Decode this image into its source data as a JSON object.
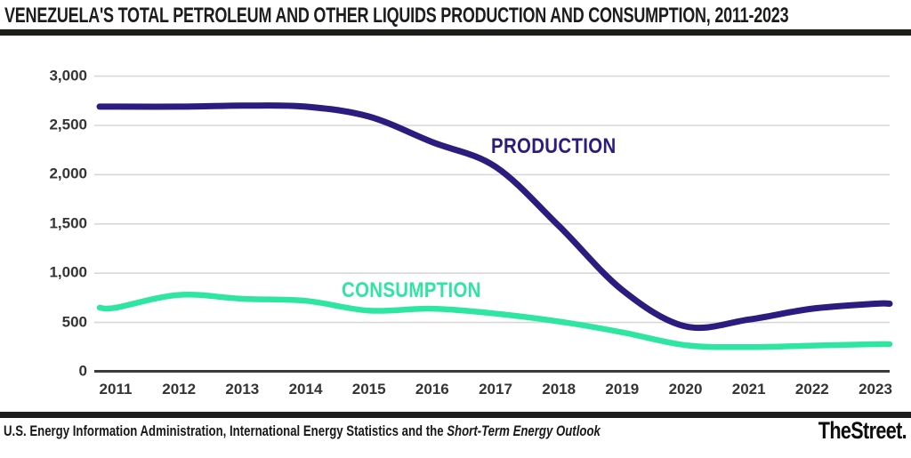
{
  "chart_data": {
    "type": "line",
    "title": "VENEZUELA'S TOTAL PETROLEUM AND OTHER LIQUIDS PRODUCTION AND CONSUMPTION, 2011-2023",
    "x": [
      2011,
      2012,
      2013,
      2014,
      2015,
      2016,
      2017,
      2018,
      2019,
      2020,
      2021,
      2022,
      2023
    ],
    "x_tick_labels": [
      "2011",
      "2012",
      "2013",
      "2014",
      "2015",
      "2016",
      "2017",
      "2018",
      "2019",
      "2020",
      "2021",
      "2022",
      "2023"
    ],
    "series": [
      {
        "name": "PRODUCTION",
        "color": "#2b1c80",
        "values": [
          2690,
          2690,
          2700,
          2690,
          2590,
          2330,
          2080,
          1480,
          830,
          460,
          530,
          640,
          690
        ]
      },
      {
        "name": "CONSUMPTION",
        "color": "#2ee5a2",
        "values": [
          650,
          780,
          740,
          720,
          620,
          640,
          590,
          510,
          400,
          270,
          250,
          265,
          280
        ]
      }
    ],
    "xlabel": "",
    "ylabel": "",
    "ylim": [
      0,
      3000
    ],
    "yticks": [
      0,
      500,
      1000,
      1500,
      2000,
      2500,
      3000
    ],
    "y_tick_labels": [
      "0",
      "500",
      "1,000",
      "1,500",
      "2,000",
      "2,500",
      "3,000"
    ],
    "grid": "horizontal",
    "legend": "inline-labels",
    "colors": {
      "grid": "#d8d8d8",
      "axis": "#3b3b3b",
      "tick_text": "#343434"
    }
  },
  "footer": {
    "source_regular": "U.S. Energy Information Administration, International Energy Statistics and the ",
    "source_italic": "Short-Term Energy Outlook",
    "logo_text": "TheStreet."
  },
  "accent": {
    "bar_color": "#1d1d1b",
    "background": "#ffffff"
  }
}
